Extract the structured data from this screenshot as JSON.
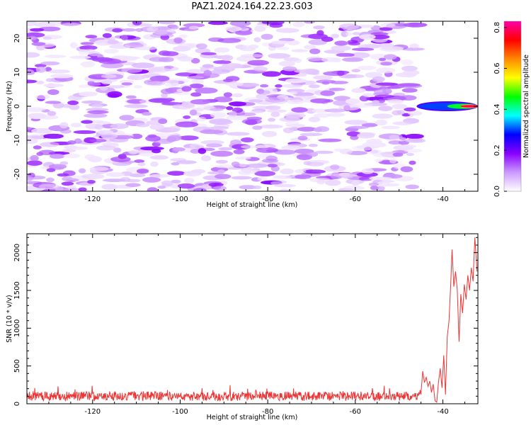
{
  "title": "PAZ1.2024.164.22.23.G03",
  "colors": {
    "snr_line": "#ee3333",
    "frame": "#000000"
  },
  "chart_data": [
    {
      "type": "heatmap",
      "title": "PAZ1.2024.164.22.23.G03",
      "xlabel": "Height of straight line (km)",
      "ylabel": "Frequency (Hz)",
      "xlim": [
        -135,
        -32
      ],
      "ylim": [
        -25,
        25
      ],
      "xticks": [
        -120,
        -100,
        -80,
        -60,
        -40
      ],
      "yticks": [
        -20,
        -10,
        0,
        10,
        20
      ],
      "colorbar": {
        "label": "Normalized spectral amplitude",
        "range": [
          0,
          0.83
        ],
        "ticks": [
          0.0,
          0.2,
          0.4,
          0.6,
          0.8
        ],
        "colormap": [
          "#ffffff",
          "#cc99ff",
          "#8800ff",
          "#0000ff",
          "#00ffff",
          "#00ff00",
          "#ffff00",
          "#ff8800",
          "#ff0000",
          "#ff00aa"
        ]
      },
      "features": {
        "background_noise_extent_km": [
          -135,
          -46
        ],
        "background_noise_amplitude": 0.12,
        "signal_onset_km": -46,
        "signal_frequency_hz": 0,
        "signal_peak_amplitude": 0.83,
        "signal_peak_km": -33
      },
      "grid": false
    },
    {
      "type": "line",
      "xlabel": "Height of straight line (km)",
      "ylabel": "SNR (10 * v/v)",
      "xlim": [
        -135,
        -32
      ],
      "ylim": [
        0,
        2250
      ],
      "xticks": [
        -120,
        -100,
        -80,
        -60,
        -40
      ],
      "yticks": [
        0,
        500,
        1000,
        1500,
        2000
      ],
      "grid": false,
      "series": [
        {
          "color": "#ee3333",
          "noise_level": [
            -135,
            -45,
            100,
            60
          ],
          "points": [
            [
              -45,
              140
            ],
            [
              -44.6,
              430
            ],
            [
              -44.2,
              280
            ],
            [
              -43.8,
              350
            ],
            [
              -43.4,
              230
            ],
            [
              -43.0,
              300
            ],
            [
              -42.6,
              150
            ],
            [
              -42.2,
              260
            ],
            [
              -41.8,
              40
            ],
            [
              -41.4,
              20
            ],
            [
              -41.0,
              280
            ],
            [
              -40.6,
              470
            ],
            [
              -40.2,
              210
            ],
            [
              -39.8,
              640
            ],
            [
              -39.4,
              120
            ],
            [
              -39.0,
              880
            ],
            [
              -38.6,
              1100
            ],
            [
              -38.2,
              1600
            ],
            [
              -37.9,
              2040
            ],
            [
              -37.5,
              1550
            ],
            [
              -37.1,
              1750
            ],
            [
              -36.7,
              1500
            ],
            [
              -36.3,
              820
            ],
            [
              -35.9,
              1450
            ],
            [
              -35.5,
              1200
            ],
            [
              -35.1,
              1580
            ],
            [
              -34.7,
              1380
            ],
            [
              -34.3,
              1700
            ],
            [
              -33.9,
              1500
            ],
            [
              -33.5,
              1800
            ],
            [
              -33.1,
              1620
            ],
            [
              -32.7,
              2200
            ],
            [
              -32.2,
              1750
            ]
          ]
        }
      ]
    }
  ]
}
